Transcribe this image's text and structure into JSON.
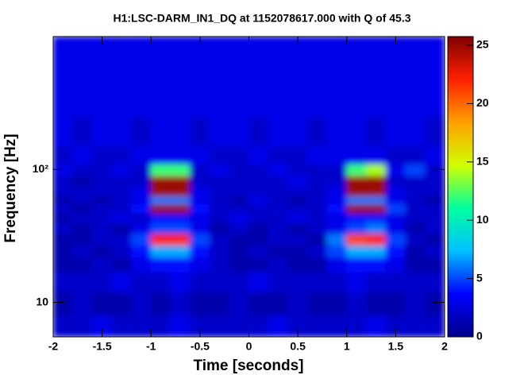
{
  "chart_data": {
    "type": "heatmap",
    "title": "H1:LSC-DARM_IN1_DQ at 1152078617.000 with Q of 45.3",
    "xlabel": "Time [seconds]",
    "ylabel": "Frequency [Hz]",
    "xlim": [
      -2,
      2
    ],
    "xticks": [
      -2,
      -1.5,
      -1,
      -0.5,
      0,
      0.5,
      1,
      1.5,
      2
    ],
    "ylim": [
      5.5,
      1000
    ],
    "yscale": "log",
    "yticks": [
      10,
      {
        "value": 100,
        "label": "10²"
      }
    ],
    "zlim": [
      0,
      25.75
    ],
    "zticks": [
      0,
      5,
      10,
      15,
      20,
      25
    ],
    "colorscale": [
      "#00008b",
      "#0000ff",
      "#00c0ff",
      "#00ffa0",
      "#d0ff00",
      "#ffa000",
      "#ff2000",
      "#800000"
    ],
    "xbins": [
      -2,
      -1.8,
      -1.6,
      -1.4,
      -1.2,
      -1,
      -0.8,
      -0.6,
      -0.4,
      -0.2,
      0,
      0.2,
      0.4,
      0.6,
      0.8,
      1,
      1.2,
      1.4,
      1.6,
      1.8,
      2
    ],
    "ybins": [
      5.5,
      8,
      12,
      17,
      22,
      27,
      33,
      40,
      47,
      55,
      63,
      75,
      90,
      110,
      150,
      250,
      1000
    ],
    "z": [
      [
        2,
        2,
        3,
        2,
        2,
        2,
        3,
        2,
        2,
        2,
        2,
        3,
        2,
        2,
        2,
        2,
        3,
        2,
        2,
        2
      ],
      [
        1,
        2,
        1,
        1,
        2,
        1,
        2,
        1,
        1,
        2,
        1,
        1,
        2,
        1,
        1,
        2,
        1,
        1,
        2,
        1
      ],
      [
        2,
        2,
        2,
        3,
        2,
        2,
        3,
        2,
        2,
        2,
        3,
        2,
        2,
        2,
        2,
        3,
        2,
        2,
        2,
        2
      ],
      [
        1,
        1,
        2,
        1,
        3,
        4,
        4,
        3,
        2,
        1,
        1,
        2,
        1,
        1,
        3,
        4,
        4,
        3,
        1,
        1
      ],
      [
        1,
        2,
        1,
        2,
        4,
        7,
        7,
        4,
        2,
        1,
        2,
        1,
        1,
        2,
        5,
        7,
        7,
        4,
        1,
        2
      ],
      [
        1,
        1,
        2,
        2,
        5,
        22,
        22,
        5,
        2,
        1,
        1,
        2,
        2,
        1,
        6,
        21,
        22,
        5,
        2,
        1
      ],
      [
        2,
        1,
        2,
        1,
        3,
        5,
        5,
        3,
        1,
        2,
        1,
        2,
        1,
        2,
        3,
        5,
        6,
        3,
        1,
        2
      ],
      [
        1,
        2,
        2,
        3,
        2,
        4,
        4,
        3,
        2,
        3,
        2,
        2,
        3,
        2,
        3,
        4,
        4,
        3,
        2,
        2
      ],
      [
        2,
        1,
        2,
        2,
        4,
        25,
        25,
        4,
        2,
        2,
        2,
        2,
        2,
        2,
        4,
        25,
        25,
        5,
        2,
        2
      ],
      [
        1,
        2,
        1,
        2,
        3,
        6,
        6,
        3,
        2,
        1,
        3,
        2,
        1,
        2,
        3,
        6,
        6,
        3,
        2,
        1
      ],
      [
        2,
        2,
        2,
        2,
        3,
        25,
        25,
        3,
        2,
        2,
        2,
        2,
        2,
        2,
        3,
        25,
        25,
        3,
        2,
        2
      ],
      [
        2,
        1,
        2,
        2,
        2,
        25,
        25,
        2,
        2,
        2,
        2,
        2,
        3,
        2,
        2,
        25,
        25,
        2,
        2,
        2
      ],
      [
        3,
        2,
        2,
        3,
        2,
        12,
        12,
        2,
        3,
        2,
        2,
        3,
        2,
        2,
        2,
        12,
        14,
        3,
        5,
        2
      ],
      [
        2,
        3,
        2,
        2,
        3,
        3,
        3,
        3,
        2,
        2,
        3,
        2,
        2,
        3,
        3,
        3,
        3,
        2,
        2,
        3
      ],
      [
        3,
        2,
        3,
        3,
        2,
        3,
        3,
        2,
        3,
        3,
        2,
        3,
        3,
        2,
        3,
        3,
        2,
        3,
        3,
        2
      ],
      [
        3,
        3,
        3,
        3,
        3,
        3,
        3,
        3,
        3,
        3,
        3,
        3,
        3,
        3,
        3,
        3,
        3,
        3,
        3,
        3
      ]
    ]
  }
}
